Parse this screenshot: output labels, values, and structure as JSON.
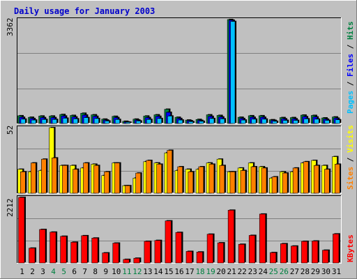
{
  "title": "Daily usage for January 2003",
  "colors": {
    "background": "#c0c0c0",
    "plot_area": "#c0c0c0",
    "hits": "#008040",
    "files": "#0000ff",
    "pages": "#00c0ff",
    "visits": "#ffff00",
    "sites": "#ff8000",
    "kbytes": "#ff0000",
    "weekday_label": "#000000",
    "weekend_label": "#008040"
  },
  "panels": {
    "top": {
      "max_label": "3362",
      "legend": [
        "Pages",
        "Files",
        "Hits"
      ]
    },
    "middle": {
      "max_label": "52",
      "legend": [
        "Sites",
        "Visits"
      ]
    },
    "bottom": {
      "max_label": "2212",
      "legend": [
        "KBytes"
      ]
    }
  },
  "chart_data": {
    "type": "bar",
    "title": "Daily usage for January 2003",
    "categories": [
      "1",
      "2",
      "3",
      "4",
      "5",
      "6",
      "7",
      "8",
      "9",
      "10",
      "11",
      "12",
      "13",
      "14",
      "15",
      "16",
      "17",
      "18",
      "19",
      "20",
      "21",
      "22",
      "23",
      "24",
      "25",
      "26",
      "27",
      "28",
      "29",
      "30",
      "31"
    ],
    "weekend_days": [
      "4",
      "5",
      "11",
      "12",
      "18",
      "19",
      "25",
      "26"
    ],
    "panels": [
      {
        "name": "top",
        "ylim": [
          0,
          3362
        ],
        "series": [
          {
            "name": "Hits",
            "values": [
              250,
              200,
              240,
              240,
              290,
              260,
              330,
              280,
              140,
              230,
              70,
              140,
              240,
              280,
              460,
              200,
              110,
              130,
              280,
              260,
              3362,
              200,
              250,
              250,
              120,
              190,
              190,
              270,
              260,
              180,
              210
            ]
          },
          {
            "name": "Files",
            "values": [
              200,
              160,
              190,
              190,
              240,
              210,
              270,
              230,
              110,
              190,
              50,
              110,
              190,
              230,
              360,
              160,
              90,
              100,
              230,
              210,
              3340,
              160,
              200,
              200,
              100,
              150,
              150,
              220,
              210,
              140,
              170
            ]
          },
          {
            "name": "Pages",
            "values": [
              140,
              110,
              130,
              130,
              170,
              150,
              190,
              160,
              80,
              130,
              40,
              80,
              130,
              160,
              240,
              110,
              60,
              70,
              160,
              150,
              3300,
              110,
              140,
              140,
              70,
              100,
              100,
              150,
              140,
              100,
              120
            ]
          }
        ]
      },
      {
        "name": "middle",
        "ylim": [
          0,
          52
        ],
        "series": [
          {
            "name": "Visits",
            "values": [
              19,
              17,
              18,
              52,
              22,
              22,
              20,
              23,
              14,
              24,
              6,
              12,
              25,
              24,
              32,
              18,
              19,
              19,
              24,
              27,
              17,
              20,
              24,
              21,
              12,
              17,
              17,
              24,
              26,
              22,
              29
            ]
          },
          {
            "name": "Sites",
            "values": [
              17,
              24,
              27,
              28,
              22,
              19,
              24,
              22,
              17,
              24,
              6,
              16,
              26,
              23,
              34,
              21,
              17,
              21,
              23,
              22,
              17,
              18,
              21,
              20,
              13,
              16,
              20,
              25,
              22,
              19,
              23
            ]
          }
        ]
      },
      {
        "name": "bottom",
        "ylim": [
          0,
          2212
        ],
        "series": [
          {
            "name": "KBytes",
            "values": [
              2212,
              500,
              1130,
              1040,
              900,
              700,
              920,
              840,
              340,
              670,
              120,
              160,
              730,
              760,
              1420,
              1030,
              390,
              370,
              970,
              680,
              1780,
              630,
              930,
              1650,
              350,
              650,
              570,
              730,
              740,
              430,
              980
            ]
          }
        ]
      }
    ]
  }
}
